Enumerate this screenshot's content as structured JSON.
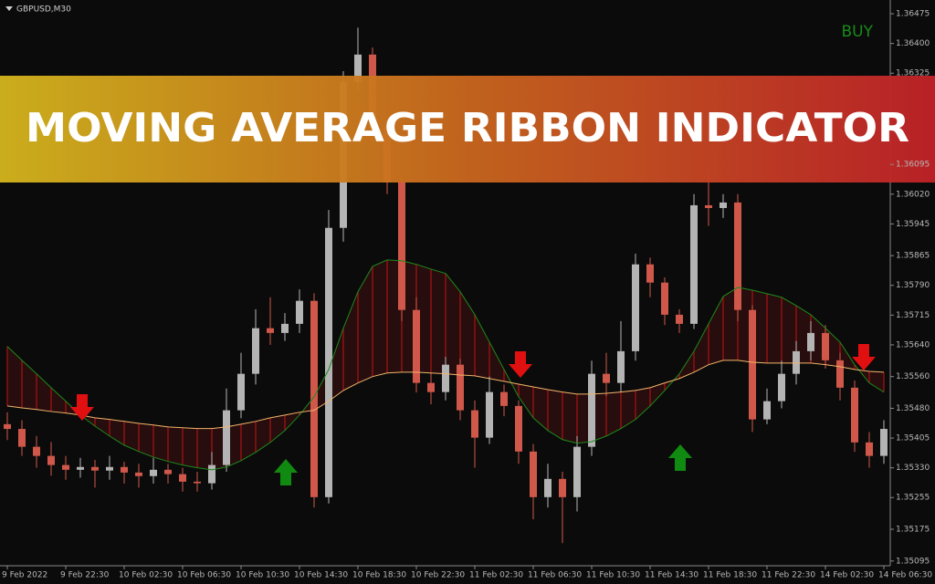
{
  "chart_data": {
    "type": "candlestick",
    "symbol": "GBPUSD,M30",
    "signal": "BUY",
    "banner": "MOVING AVERAGE RIBBON INDICATOR",
    "up_color": "#b4b4b4",
    "down_color": "#d0584a",
    "ribbon_color": "#a81414",
    "grid": false,
    "ylim": [
      1.35083,
      1.36505
    ],
    "yticks": [
      {
        "value": 1.36475,
        "label": "1.36475"
      },
      {
        "value": 1.364,
        "label": "1.36400"
      },
      {
        "value": 1.36325,
        "label": "1.36325"
      },
      {
        "value": 1.36095,
        "label": "1.36095"
      },
      {
        "value": 1.3602,
        "label": "1.36020"
      },
      {
        "value": 1.35945,
        "label": "1.35945"
      },
      {
        "value": 1.35865,
        "label": "1.35865"
      },
      {
        "value": 1.3579,
        "label": "1.35790"
      },
      {
        "value": 1.35715,
        "label": "1.35715"
      },
      {
        "value": 1.3564,
        "label": "1.35640"
      },
      {
        "value": 1.3556,
        "label": "1.35560"
      },
      {
        "value": 1.3548,
        "label": "1.35480"
      },
      {
        "value": 1.35405,
        "label": "1.35405"
      },
      {
        "value": 1.3533,
        "label": "1.35330"
      },
      {
        "value": 1.35255,
        "label": "1.35255"
      },
      {
        "value": 1.35175,
        "label": "1.35175"
      },
      {
        "value": 1.35095,
        "label": "1.35095"
      }
    ],
    "categories": [
      "9 Feb 2022",
      null,
      null,
      null,
      "9 Feb 22:30",
      null,
      null,
      null,
      "10 Feb 02:30",
      null,
      null,
      null,
      "10 Feb 06:30",
      null,
      null,
      null,
      "10 Feb 10:30",
      null,
      null,
      null,
      "10 Feb 14:30",
      null,
      null,
      null,
      "10 Feb 18:30",
      null,
      null,
      null,
      "10 Feb 22:30",
      null,
      null,
      null,
      "11 Feb 02:30",
      null,
      null,
      null,
      "11 Feb 06:30",
      null,
      null,
      null,
      "11 Feb 10:30",
      null,
      null,
      null,
      "11 Feb 14:30",
      null,
      null,
      null,
      "11 Feb 18:30",
      null,
      null,
      null,
      "11 Feb 22:30",
      null,
      null,
      null,
      "14 Feb 02:30",
      null,
      null,
      null,
      "14 Feb 06:30"
    ],
    "open": [
      1.3544,
      1.35428,
      1.35383,
      1.3536,
      1.35337,
      1.35325,
      1.35332,
      1.35323,
      1.35332,
      1.35318,
      1.35309,
      1.35325,
      1.35314,
      1.35295,
      1.35291,
      1.35337,
      1.35475,
      1.35567,
      1.35682,
      1.3567,
      1.35693,
      1.35751,
      1.35256,
      1.35935,
      1.36303,
      1.36372,
      1.36188,
      1.3605,
      1.35728,
      1.35544,
      1.35521,
      1.3559,
      1.35475,
      1.35406,
      1.35521,
      1.35486,
      1.35371,
      1.35256,
      1.35302,
      1.35256,
      1.35383,
      1.35567,
      1.35544,
      1.35624,
      1.35843,
      1.35797,
      1.35716,
      1.35693,
      1.35992,
      1.35985,
      1.35999,
      1.35728,
      1.35452,
      1.35498,
      1.35567,
      1.35624,
      1.3567,
      1.35601,
      1.35532,
      1.35394,
      1.3536
    ],
    "high": [
      1.3547,
      1.3545,
      1.3541,
      1.35395,
      1.3536,
      1.35355,
      1.3535,
      1.3536,
      1.35345,
      1.3534,
      1.35355,
      1.3534,
      1.3533,
      1.3532,
      1.3537,
      1.3553,
      1.3562,
      1.3573,
      1.3576,
      1.3572,
      1.3578,
      1.3577,
      1.3598,
      1.3633,
      1.3644,
      1.3639,
      1.3621,
      1.3607,
      1.3576,
      1.3557,
      1.3561,
      1.35605,
      1.355,
      1.3556,
      1.3554,
      1.355,
      1.3539,
      1.3534,
      1.3532,
      1.3541,
      1.356,
      1.3562,
      1.357,
      1.3587,
      1.3586,
      1.3581,
      1.3573,
      1.3602,
      1.3608,
      1.3602,
      1.3602,
      1.3574,
      1.3553,
      1.356,
      1.3565,
      1.357,
      1.3569,
      1.3562,
      1.3555,
      1.3542,
      1.3545
    ],
    "low": [
      1.354,
      1.3536,
      1.3533,
      1.3531,
      1.353,
      1.35305,
      1.3528,
      1.353,
      1.3529,
      1.3528,
      1.3529,
      1.3529,
      1.3527,
      1.3527,
      1.35275,
      1.3532,
      1.35455,
      1.3554,
      1.3564,
      1.3565,
      1.3567,
      1.3523,
      1.3524,
      1.359,
      1.3628,
      1.3615,
      1.3602,
      1.357,
      1.3552,
      1.3549,
      1.355,
      1.3545,
      1.3533,
      1.3539,
      1.3546,
      1.3534,
      1.352,
      1.3523,
      1.3514,
      1.3522,
      1.3536,
      1.3551,
      1.3552,
      1.356,
      1.3576,
      1.3569,
      1.3567,
      1.3568,
      1.3594,
      1.3596,
      1.357,
      1.3542,
      1.3544,
      1.3548,
      1.3554,
      1.356,
      1.3558,
      1.355,
      1.3537,
      1.3533,
      1.3534
    ],
    "close": [
      1.35428,
      1.35383,
      1.3536,
      1.35337,
      1.35325,
      1.35332,
      1.35323,
      1.35332,
      1.35318,
      1.35309,
      1.35325,
      1.35314,
      1.35295,
      1.35291,
      1.35337,
      1.35475,
      1.35567,
      1.35682,
      1.3567,
      1.35693,
      1.35751,
      1.35256,
      1.35935,
      1.36303,
      1.36372,
      1.36188,
      1.3605,
      1.35728,
      1.35544,
      1.35521,
      1.3559,
      1.35475,
      1.35406,
      1.35521,
      1.35486,
      1.35371,
      1.35256,
      1.35302,
      1.35256,
      1.35383,
      1.35567,
      1.35544,
      1.35624,
      1.35843,
      1.35797,
      1.35716,
      1.35693,
      1.35992,
      1.35985,
      1.35999,
      1.35728,
      1.35452,
      1.35498,
      1.35567,
      1.35624,
      1.3567,
      1.35601,
      1.35532,
      1.35394,
      1.3536,
      1.35428
    ],
    "series": [
      {
        "color": "#1c8a1c",
        "values": [
          1.35636,
          1.35601,
          1.35567,
          1.35532,
          1.35498,
          1.35463,
          1.35435,
          1.3541,
          1.35387,
          1.35371,
          1.35357,
          1.35346,
          1.35337,
          1.3533,
          1.35325,
          1.35332,
          1.35348,
          1.35369,
          1.35394,
          1.35424,
          1.35463,
          1.35509,
          1.35578,
          1.35682,
          1.35774,
          1.35838,
          1.35854,
          1.35852,
          1.35843,
          1.35831,
          1.3582,
          1.35774,
          1.35716,
          1.35647,
          1.35578,
          1.35509,
          1.35456,
          1.35424,
          1.35401,
          1.35392,
          1.35396,
          1.3541,
          1.35429,
          1.35452,
          1.35486,
          1.35525,
          1.35567,
          1.35624,
          1.35693,
          1.35762,
          1.35785,
          1.35778,
          1.35769,
          1.3576,
          1.35739,
          1.35716,
          1.35682,
          1.35647,
          1.3559,
          1.35544,
          1.35521
        ]
      },
      {
        "color": "#f2b46a",
        "values": [
          1.35486,
          1.35481,
          1.35477,
          1.35472,
          1.35468,
          1.35463,
          1.35456,
          1.35452,
          1.35447,
          1.35442,
          1.35438,
          1.35433,
          1.35431,
          1.35429,
          1.35429,
          1.35433,
          1.3544,
          1.35447,
          1.35456,
          1.35463,
          1.3547,
          1.35475,
          1.35498,
          1.35525,
          1.35544,
          1.3556,
          1.35569,
          1.35571,
          1.35571,
          1.35569,
          1.35567,
          1.35564,
          1.35562,
          1.35555,
          1.35548,
          1.35541,
          1.35534,
          1.35527,
          1.35521,
          1.35516,
          1.35516,
          1.35518,
          1.35521,
          1.35525,
          1.35532,
          1.35544,
          1.35555,
          1.35571,
          1.3559,
          1.35601,
          1.35601,
          1.35596,
          1.35594,
          1.35594,
          1.35594,
          1.35594,
          1.3559,
          1.35585,
          1.35578,
          1.35573,
          1.35571
        ]
      }
    ]
  }
}
